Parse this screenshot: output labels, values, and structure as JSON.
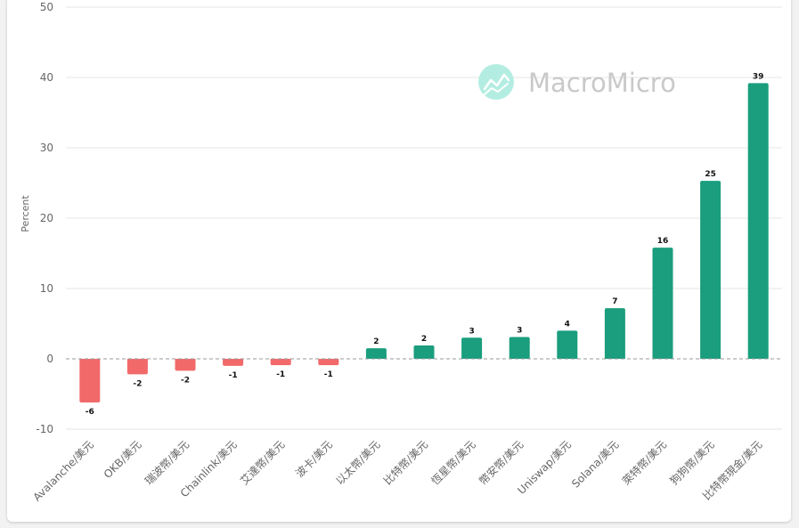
{
  "chart_data": {
    "type": "bar",
    "ylabel": "Percent",
    "ylim": [
      -10,
      50
    ],
    "yticks": [
      -10,
      0,
      10,
      20,
      30,
      40,
      50
    ],
    "grid": true,
    "categories": [
      "Avalanche/美元",
      "OKB/美元",
      "瑞波幣/美元",
      "Chainlink/美元",
      "艾達幣/美元",
      "波卡/美元",
      "以太幣/美元",
      "比特幣/美元",
      "恆星幣/美元",
      "幣安幣/美元",
      "Uniswap/美元",
      "Solana/美元",
      "萊特幣/美元",
      "狗狗幣/美元",
      "比特幣現金/美元"
    ],
    "values": [
      -6.2,
      -2.2,
      -1.7,
      -1.0,
      -0.9,
      -0.9,
      1.5,
      1.9,
      3.0,
      3.1,
      4.0,
      7.2,
      15.8,
      25.3,
      39.2
    ],
    "data_labels": [
      "-6",
      "-2",
      "-2",
      "-1",
      "-1",
      "-1",
      "2",
      "2",
      "3",
      "3",
      "4",
      "7",
      "16",
      "25",
      "39"
    ],
    "colors": {
      "positive": "#1a9e7d",
      "negative": "#f2696a"
    }
  },
  "watermark": {
    "text": "MacroMicro",
    "icon": "macromicro-logo-icon"
  }
}
